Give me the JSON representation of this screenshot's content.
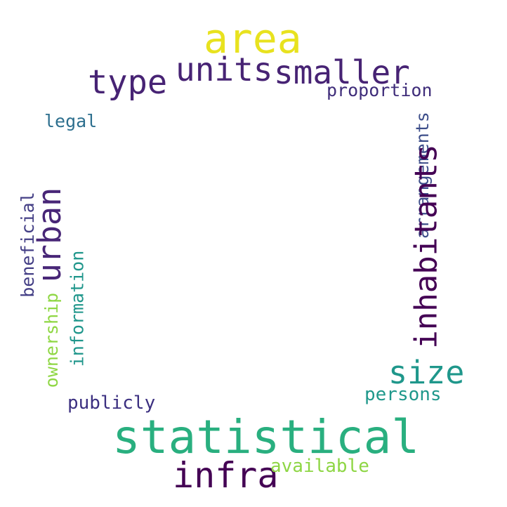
{
  "words": [
    {
      "id": "area",
      "text": "area",
      "color": "#e8e21f",
      "orientation": "horizontal"
    },
    {
      "id": "units",
      "text": "units",
      "color": "#472374",
      "orientation": "horizontal"
    },
    {
      "id": "smaller",
      "text": "smaller",
      "color": "#472374",
      "orientation": "horizontal"
    },
    {
      "id": "type",
      "text": "type",
      "color": "#472374",
      "orientation": "horizontal"
    },
    {
      "id": "proportion",
      "text": "proportion",
      "color": "#3f2d7a",
      "orientation": "horizontal"
    },
    {
      "id": "legal",
      "text": "legal",
      "color": "#2d6f8e",
      "orientation": "horizontal"
    },
    {
      "id": "arrangements",
      "text": "arrangements",
      "color": "#3d4e8a",
      "orientation": "vertical"
    },
    {
      "id": "inhabitants",
      "text": "inhabitants",
      "color": "#440154",
      "orientation": "vertical"
    },
    {
      "id": "urban",
      "text": "urban",
      "color": "#482677",
      "orientation": "vertical"
    },
    {
      "id": "beneficial",
      "text": "beneficial",
      "color": "#433e85",
      "orientation": "vertical"
    },
    {
      "id": "information",
      "text": "information",
      "color": "#1f968b",
      "orientation": "vertical"
    },
    {
      "id": "ownership",
      "text": "ownership",
      "color": "#8fd744",
      "orientation": "vertical"
    },
    {
      "id": "size",
      "text": "size",
      "color": "#1f978b",
      "orientation": "horizontal"
    },
    {
      "id": "persons",
      "text": "persons",
      "color": "#1f988b",
      "orientation": "horizontal"
    },
    {
      "id": "publicly",
      "text": "publicly",
      "color": "#3b2f80",
      "orientation": "horizontal"
    },
    {
      "id": "statistical",
      "text": "statistical",
      "color": "#29af7f",
      "orientation": "horizontal"
    },
    {
      "id": "infra",
      "text": "infra",
      "color": "#440154",
      "orientation": "horizontal"
    },
    {
      "id": "available",
      "text": "available",
      "color": "#8ed645",
      "orientation": "horizontal"
    }
  ]
}
